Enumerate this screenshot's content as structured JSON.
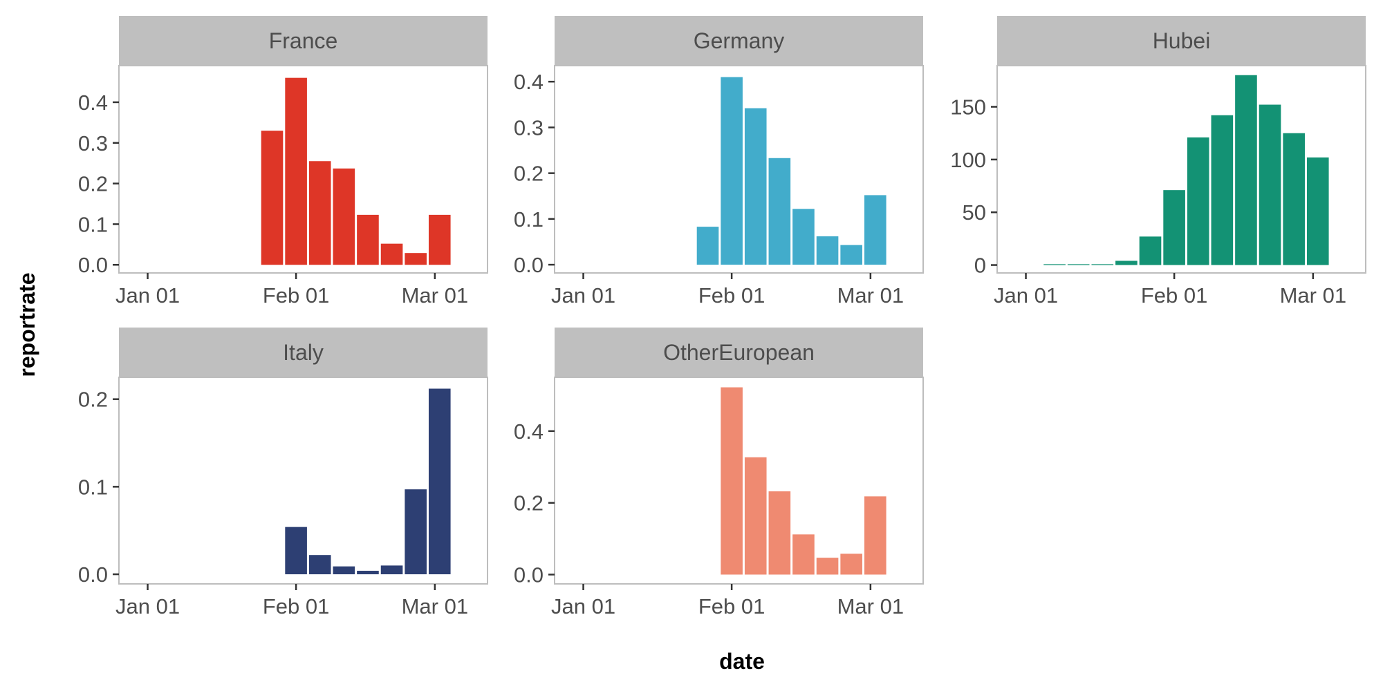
{
  "chart_data": {
    "type": "bar",
    "xlabel": "date",
    "ylabel": "reportrate",
    "x_ticks": [
      "Jan 01",
      "Feb 01",
      "Mar 01"
    ],
    "x_tick_dates": [
      "2020-01-01",
      "2020-02-01",
      "2020-03-01"
    ],
    "xlim": [
      "2019-12-26",
      "2020-03-12"
    ],
    "bin_width_days": 5,
    "grid": false,
    "legend": "none",
    "panels": [
      {
        "name": "France",
        "color": "#DE3627",
        "ylim": [
          -0.02,
          0.49
        ],
        "y_ticks": [
          0.0,
          0.1,
          0.2,
          0.3,
          0.4
        ],
        "y_tick_labels": [
          "0.0",
          "0.1",
          "0.2",
          "0.3",
          "0.4"
        ],
        "x": [
          "2020-01-27",
          "2020-02-01",
          "2020-02-06",
          "2020-02-11",
          "2020-02-16",
          "2020-02-21",
          "2020-02-26",
          "2020-03-02"
        ],
        "values": [
          0.33,
          0.46,
          0.255,
          0.237,
          0.123,
          0.052,
          0.029,
          0.123
        ]
      },
      {
        "name": "Germany",
        "color": "#42ACCB",
        "ylim": [
          -0.018,
          0.435
        ],
        "y_ticks": [
          0.0,
          0.1,
          0.2,
          0.3,
          0.4
        ],
        "y_tick_labels": [
          "0.0",
          "0.1",
          "0.2",
          "0.3",
          "0.4"
        ],
        "x": [
          "2020-01-27",
          "2020-02-01",
          "2020-02-06",
          "2020-02-11",
          "2020-02-16",
          "2020-02-21",
          "2020-02-26",
          "2020-03-02"
        ],
        "values": [
          0.083,
          0.41,
          0.342,
          0.233,
          0.122,
          0.062,
          0.043,
          0.152
        ]
      },
      {
        "name": "Hubei",
        "color": "#139274",
        "ylim": [
          -7.5,
          189
        ],
        "y_ticks": [
          0,
          50,
          100,
          150
        ],
        "y_tick_labels": [
          "0",
          "50",
          "100",
          "150"
        ],
        "x": [
          "2020-01-07",
          "2020-01-12",
          "2020-01-17",
          "2020-01-22",
          "2020-01-27",
          "2020-02-01",
          "2020-02-06",
          "2020-02-11",
          "2020-02-16",
          "2020-02-21",
          "2020-02-26",
          "2020-03-02"
        ],
        "values": [
          0.8,
          0.8,
          0.8,
          4,
          27,
          71,
          121,
          142,
          180,
          152,
          125,
          102
        ]
      },
      {
        "name": "Italy",
        "color": "#2D3F73",
        "ylim": [
          -0.011,
          0.225
        ],
        "y_ticks": [
          0.0,
          0.1,
          0.2
        ],
        "y_tick_labels": [
          "0.0",
          "0.1",
          "0.2"
        ],
        "x": [
          "2020-02-01",
          "2020-02-06",
          "2020-02-11",
          "2020-02-16",
          "2020-02-21",
          "2020-02-26",
          "2020-03-02"
        ],
        "values": [
          0.054,
          0.022,
          0.009,
          0.004,
          0.01,
          0.097,
          0.212
        ]
      },
      {
        "name": "OtherEuropean",
        "color": "#EF8A71",
        "ylim": [
          -0.026,
          0.55
        ],
        "y_ticks": [
          0.0,
          0.2,
          0.4
        ],
        "y_tick_labels": [
          "0.0",
          "0.2",
          "0.4"
        ],
        "x": [
          "2020-02-01",
          "2020-02-06",
          "2020-02-11",
          "2020-02-16",
          "2020-02-21",
          "2020-02-26",
          "2020-03-02"
        ],
        "values": [
          0.522,
          0.327,
          0.232,
          0.112,
          0.047,
          0.058,
          0.218
        ]
      }
    ]
  }
}
